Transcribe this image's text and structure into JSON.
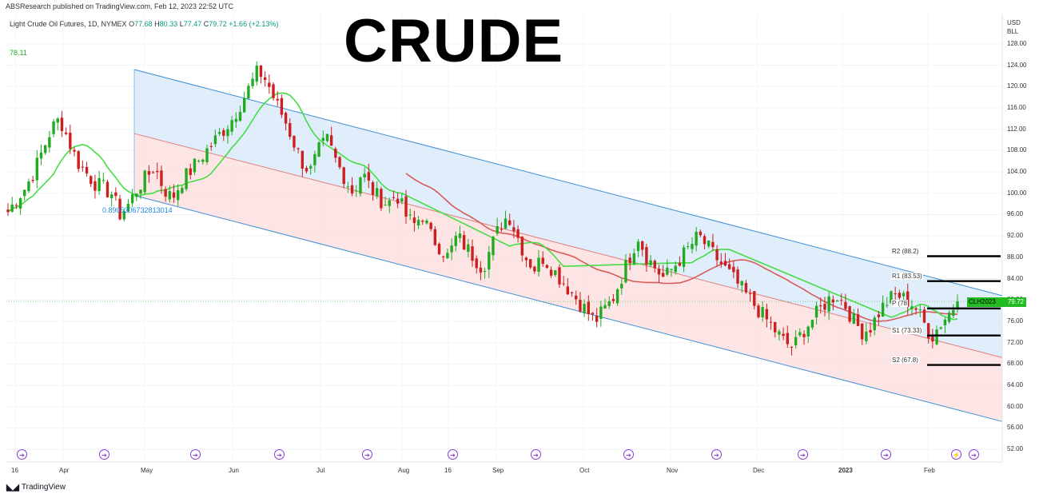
{
  "publisher": "ABSResearch published on TradingView.com, Feb 12, 2023 22:52 UTC",
  "title": "CRUDE",
  "legend": {
    "instrument": "Light Crude Oil Futures, 1D, NYMEX",
    "open_label": "O",
    "open": "77.68",
    "high_label": "H",
    "high": "80.33",
    "low_label": "L",
    "low": "77.47",
    "close_label": "C",
    "close": "79.72",
    "change": "+1.66 (+2.13%)"
  },
  "ma_value": "78.11",
  "fib_label": "0.890530673281301 4",
  "fib_label_text": "0.8905306732813014",
  "currency": [
    "USD",
    "BLL"
  ],
  "price_tag": {
    "symbol": "CLH2023",
    "value": "79.72",
    "color": "#22bb22"
  },
  "brand": "TradingView",
  "pivots": [
    {
      "label": "R2 (88.2)",
      "value": 88.2
    },
    {
      "label": "R1 (83.53)",
      "value": 83.53
    },
    {
      "label": "P (78",
      "value": 78.4
    },
    {
      "label": "S1 (73.33)",
      "value": 73.33
    },
    {
      "label": "S2 (67.8)",
      "value": 67.8
    }
  ],
  "colors": {
    "bull": "#22ab22",
    "bear": "#cc1f1f",
    "channel_upper": "#dbeafa",
    "channel_lower": "#fde0e0",
    "channel_line": "#3d8fd6",
    "ma_fast": "#44dd44",
    "ma_slow": "#d85a5a"
  },
  "chart_data": {
    "type": "candlestick",
    "title": "Light Crude Oil Futures, 1D, NYMEX",
    "xlabel": "",
    "ylabel": "USD BLL",
    "ylim": [
      50.5,
      129.5
    ],
    "y_ticks": [
      "128.00",
      "124.00",
      "120.00",
      "116.00",
      "112.00",
      "108.00",
      "104.00",
      "100.00",
      "96.00",
      "92.00",
      "88.00",
      "84.00",
      "80.00",
      "76.00",
      "72.00",
      "68.00",
      "64.00",
      "60.00",
      "56.00",
      "52.00"
    ],
    "x_ticks": [
      {
        "label": "16",
        "bold": false
      },
      {
        "label": "Apr",
        "bold": false
      },
      {
        "label": "May",
        "bold": false
      },
      {
        "label": "Jun",
        "bold": false
      },
      {
        "label": "Jul",
        "bold": false
      },
      {
        "label": "Aug",
        "bold": false
      },
      {
        "label": "16",
        "bold": false
      },
      {
        "label": "Sep",
        "bold": false
      },
      {
        "label": "Oct",
        "bold": false
      },
      {
        "label": "Nov",
        "bold": false
      },
      {
        "label": "Dec",
        "bold": false
      },
      {
        "label": "2023",
        "bold": true
      },
      {
        "label": "Feb",
        "bold": false
      }
    ],
    "close_path": [
      96.5,
      99,
      101,
      104,
      108,
      112,
      114,
      110,
      106,
      104,
      102,
      101,
      100,
      96,
      98,
      101,
      103,
      105,
      101,
      99,
      102,
      104,
      106,
      108,
      110,
      112,
      114,
      117,
      120,
      123,
      121,
      117,
      114,
      110,
      106,
      104,
      108,
      110,
      106,
      103,
      100,
      104,
      101,
      99,
      98,
      100,
      96,
      94,
      96,
      92,
      90,
      88,
      92,
      90,
      88,
      86,
      90,
      94,
      96,
      92,
      88,
      86,
      88,
      86,
      84,
      82,
      80,
      78,
      76,
      78,
      80,
      84,
      88,
      92,
      88,
      86,
      84,
      86,
      88,
      90,
      92,
      90,
      88,
      86,
      84,
      82,
      80,
      78,
      76,
      74,
      72,
      71,
      74,
      76,
      78,
      80,
      81,
      79,
      76,
      74,
      75,
      78,
      80,
      81,
      80,
      79,
      76,
      73,
      75.5,
      77.5,
      79.72
    ],
    "channel": {
      "upper_start": 123.2,
      "upper_end": 80.8,
      "mid_start": 111.2,
      "mid_end": 69.2,
      "lower_start": 99.6,
      "lower_end": 57.2
    },
    "ma_fast_last": 78.11
  },
  "x_tick_positions_note": "",
  "events_count": 12
}
